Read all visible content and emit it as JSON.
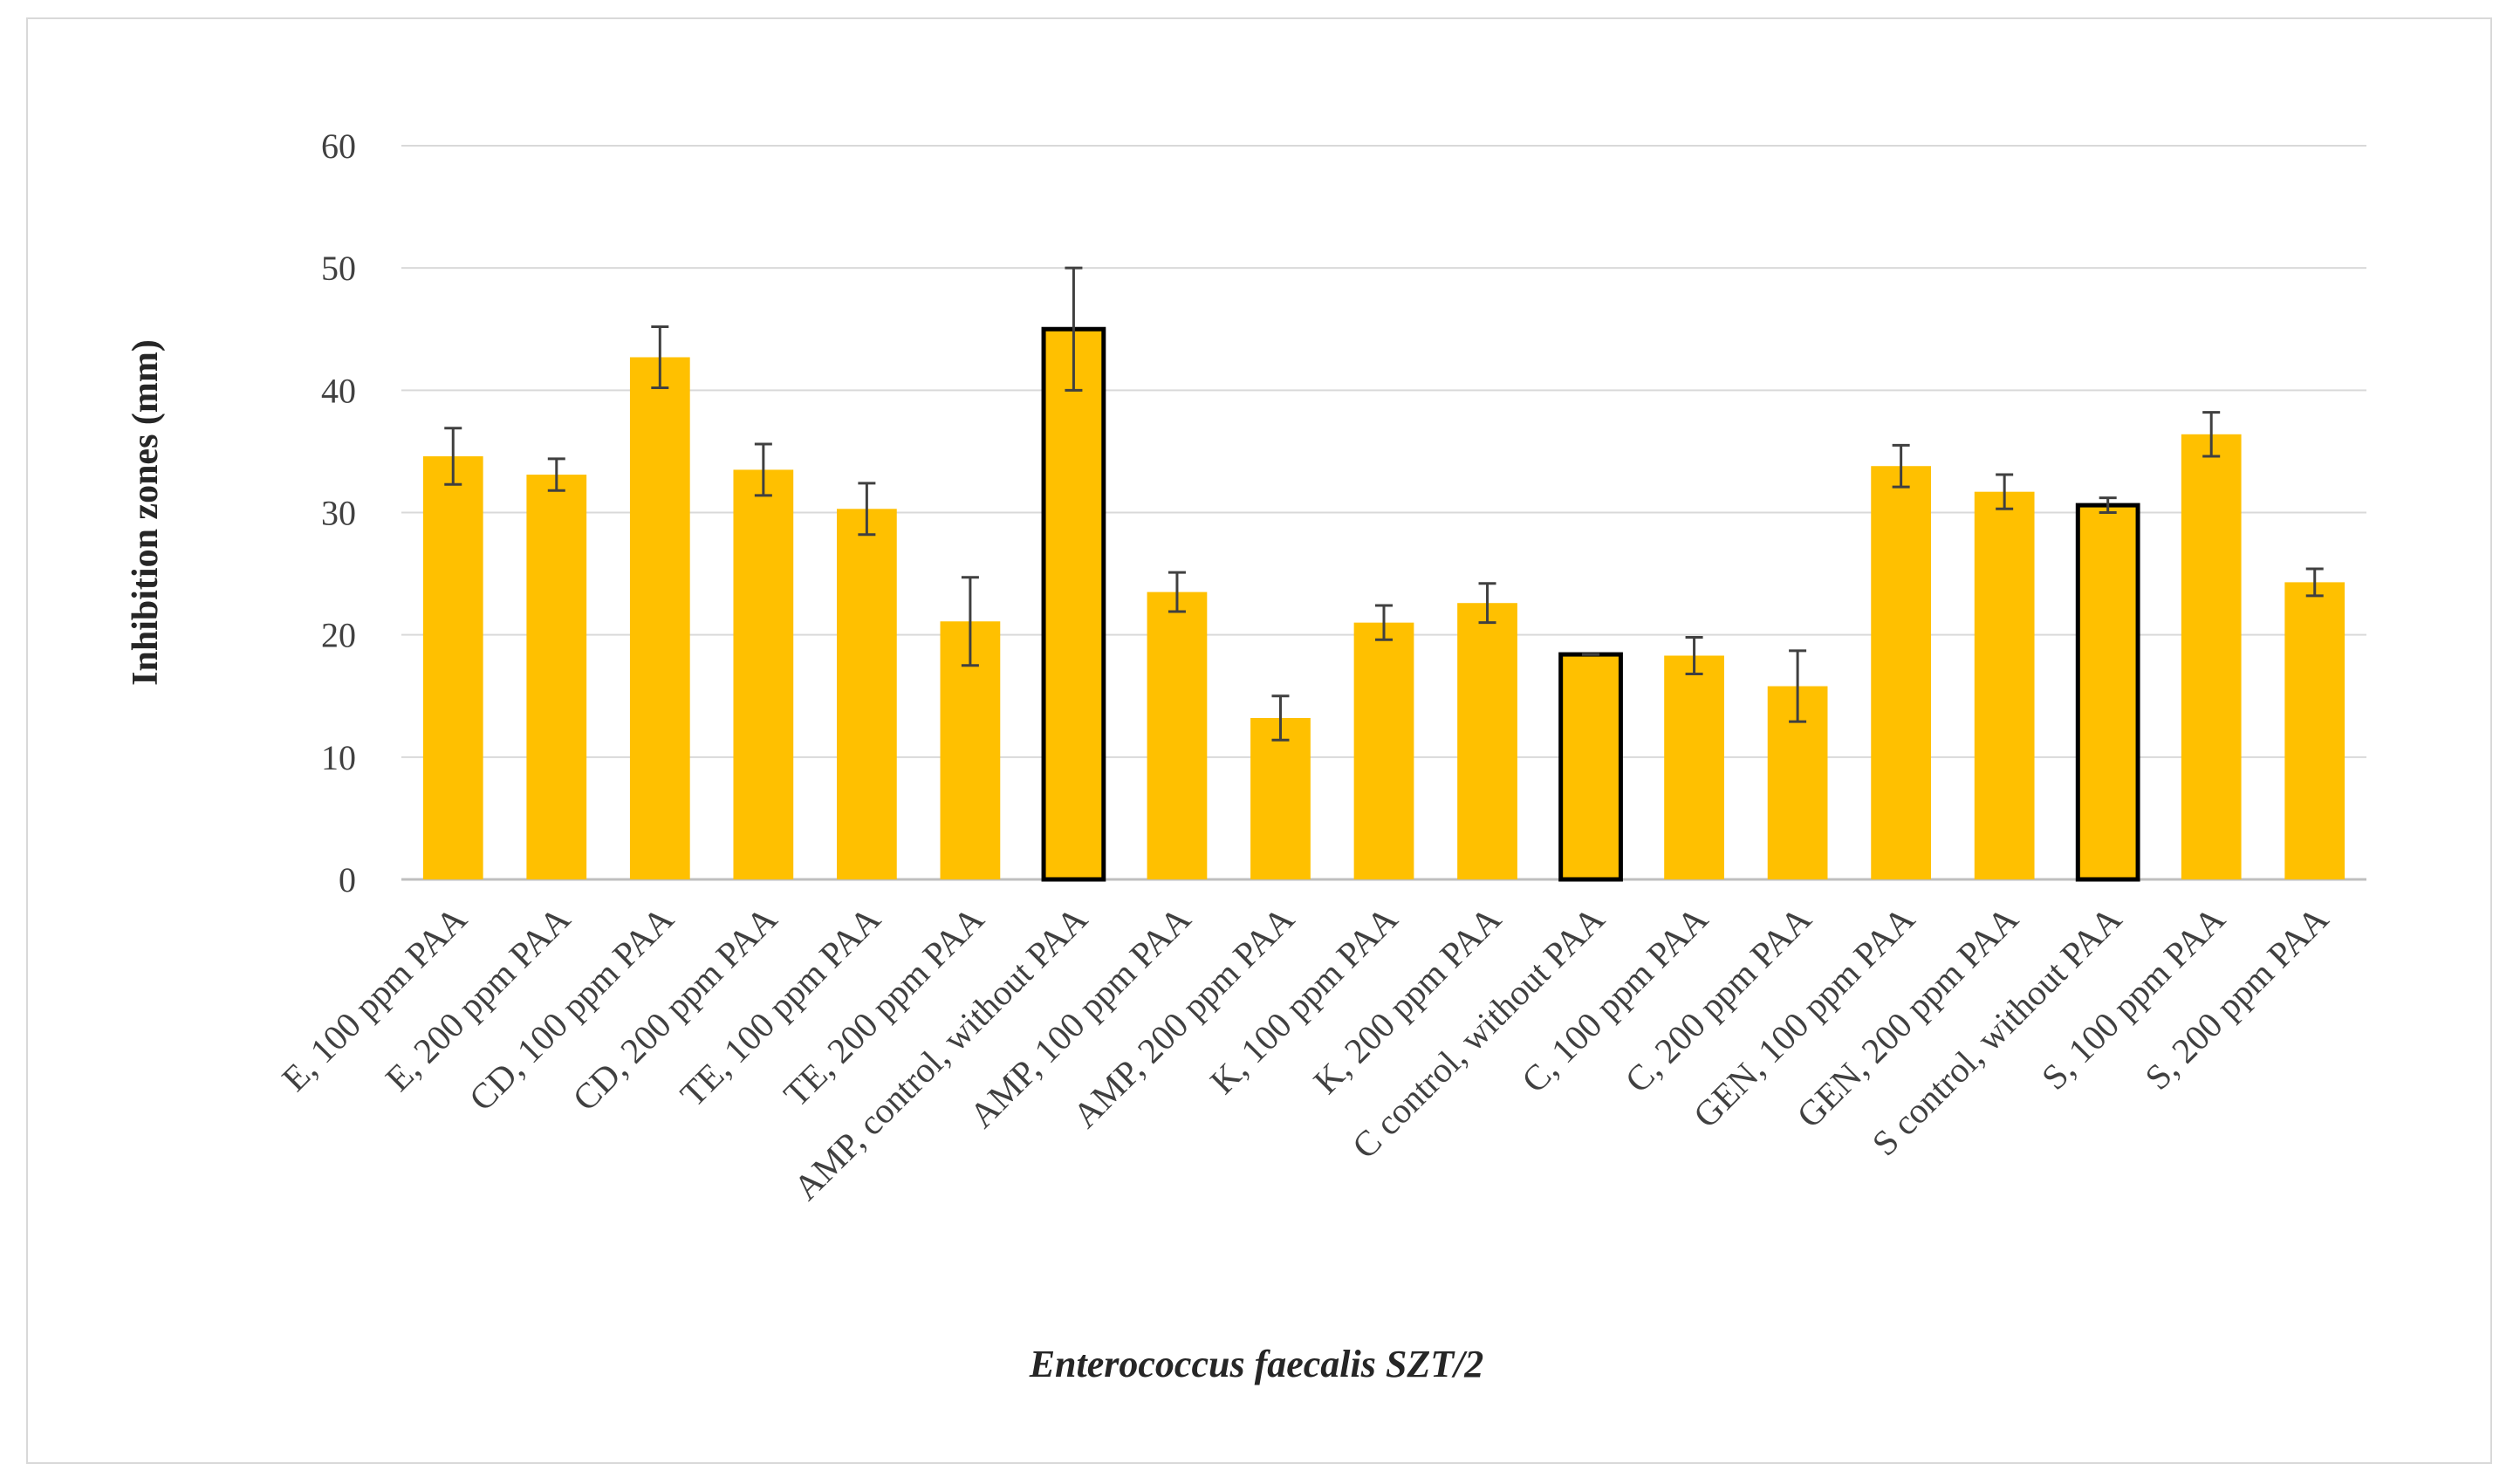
{
  "chart_data": {
    "type": "bar",
    "title": "",
    "xlabel": "Enterococcus faecalis SZT/2",
    "ylabel": "Inhibition zones (mm)",
    "ylim": [
      0,
      60
    ],
    "yticks": [
      0,
      10,
      20,
      30,
      40,
      50,
      60
    ],
    "grid": true,
    "bar_color": "#FFC000",
    "control_outline_color": "#000000",
    "grid_color": "#d9d9d9",
    "error_bar_color": "#404040",
    "categories": [
      "E, 100 ppm PAA",
      "E, 200 ppm PAA",
      "CD, 100 ppm PAA",
      "CD, 200 ppm PAA",
      "TE, 100 ppm PAA",
      "TE, 200 ppm PAA",
      "AMP, control, without PAA",
      "AMP, 100 ppm PAA",
      "AMP, 200 ppm PAA",
      "K, 100 ppm PAA",
      "K, 200 ppm PAA",
      "C control, without PAA",
      "C, 100 ppm PAA",
      "C, 200 ppm PAA",
      "GEN, 100 ppm PAA",
      "GEN, 200 ppm PAA",
      "S control, without PAA",
      "S, 100 ppm PAA",
      "S, 200 ppm PAA"
    ],
    "values": [
      34.6,
      33.1,
      42.7,
      33.5,
      30.3,
      21.1,
      45.0,
      23.5,
      13.2,
      21.0,
      22.6,
      18.4,
      18.3,
      15.8,
      33.8,
      31.7,
      30.6,
      36.4,
      24.3
    ],
    "errors": [
      2.3,
      1.3,
      2.5,
      2.1,
      2.1,
      3.6,
      5.0,
      1.6,
      1.8,
      1.4,
      1.6,
      0.0,
      1.5,
      2.9,
      1.7,
      1.4,
      0.6,
      1.8,
      1.1
    ],
    "controls": [
      false,
      false,
      false,
      false,
      false,
      false,
      true,
      false,
      false,
      false,
      false,
      true,
      false,
      false,
      false,
      false,
      true,
      false,
      false
    ]
  }
}
